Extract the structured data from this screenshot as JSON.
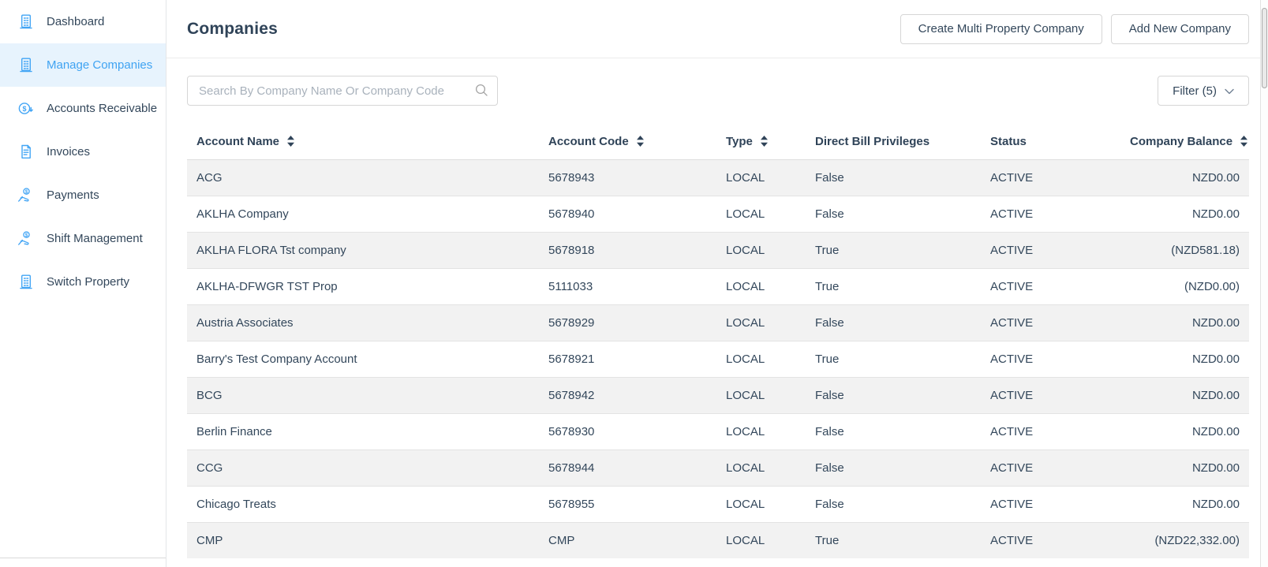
{
  "colors": {
    "accent": "#42a5f5",
    "selected_bg": "#e7f3fd",
    "selected_text": "#3fa3f2",
    "text": "#33475b",
    "stripe": "#f2f2f2",
    "border": "#e3e3e3"
  },
  "sidebar": {
    "items": [
      {
        "label": "Dashboard",
        "icon": "building-icon",
        "selected": false
      },
      {
        "label": "Manage Companies",
        "icon": "building-icon",
        "selected": true
      },
      {
        "label": "Accounts Receivable",
        "icon": "dollar-circle-arrow-icon",
        "selected": false
      },
      {
        "label": "Invoices",
        "icon": "invoice-icon",
        "selected": false
      },
      {
        "label": "Payments",
        "icon": "hand-coin-icon",
        "selected": false
      },
      {
        "label": "Shift Management",
        "icon": "hand-coin-icon",
        "selected": false
      },
      {
        "label": "Switch Property",
        "icon": "building-icon",
        "selected": false
      }
    ]
  },
  "header": {
    "title": "Companies",
    "create_multi_label": "Create Multi Property Company",
    "add_new_label": "Add New Company"
  },
  "toolbar": {
    "search_placeholder": "Search By Company Name Or Company Code",
    "search_value": "",
    "filter_label": "Filter (5)"
  },
  "table": {
    "columns": [
      {
        "label": "Account Name",
        "sortable": true
      },
      {
        "label": "Account Code",
        "sortable": true
      },
      {
        "label": "Type",
        "sortable": true
      },
      {
        "label": "Direct Bill Privileges",
        "sortable": false
      },
      {
        "label": "Status",
        "sortable": false
      },
      {
        "label": "Company Balance",
        "sortable": true
      }
    ],
    "rows": [
      {
        "account_name": "ACG",
        "account_code": "5678943",
        "type": "LOCAL",
        "direct_bill": "False",
        "status": "ACTIVE",
        "balance": "NZD0.00"
      },
      {
        "account_name": "AKLHA Company",
        "account_code": "5678940",
        "type": "LOCAL",
        "direct_bill": "False",
        "status": "ACTIVE",
        "balance": "NZD0.00"
      },
      {
        "account_name": "AKLHA FLORA Tst company",
        "account_code": "5678918",
        "type": "LOCAL",
        "direct_bill": "True",
        "status": "ACTIVE",
        "balance": "(NZD581.18)"
      },
      {
        "account_name": "AKLHA-DFWGR TST Prop",
        "account_code": "5111033",
        "type": "LOCAL",
        "direct_bill": "True",
        "status": "ACTIVE",
        "balance": "(NZD0.00)"
      },
      {
        "account_name": "Austria Associates",
        "account_code": "5678929",
        "type": "LOCAL",
        "direct_bill": "False",
        "status": "ACTIVE",
        "balance": "NZD0.00"
      },
      {
        "account_name": "Barry's Test Company Account",
        "account_code": "5678921",
        "type": "LOCAL",
        "direct_bill": "True",
        "status": "ACTIVE",
        "balance": "NZD0.00"
      },
      {
        "account_name": "BCG",
        "account_code": "5678942",
        "type": "LOCAL",
        "direct_bill": "False",
        "status": "ACTIVE",
        "balance": "NZD0.00"
      },
      {
        "account_name": "Berlin Finance",
        "account_code": "5678930",
        "type": "LOCAL",
        "direct_bill": "False",
        "status": "ACTIVE",
        "balance": "NZD0.00"
      },
      {
        "account_name": "CCG",
        "account_code": "5678944",
        "type": "LOCAL",
        "direct_bill": "False",
        "status": "ACTIVE",
        "balance": "NZD0.00"
      },
      {
        "account_name": "Chicago Treats",
        "account_code": "5678955",
        "type": "LOCAL",
        "direct_bill": "False",
        "status": "ACTIVE",
        "balance": "NZD0.00"
      },
      {
        "account_name": "CMP",
        "account_code": "CMP",
        "type": "LOCAL",
        "direct_bill": "True",
        "status": "ACTIVE",
        "balance": "(NZD22,332.00)"
      }
    ]
  }
}
